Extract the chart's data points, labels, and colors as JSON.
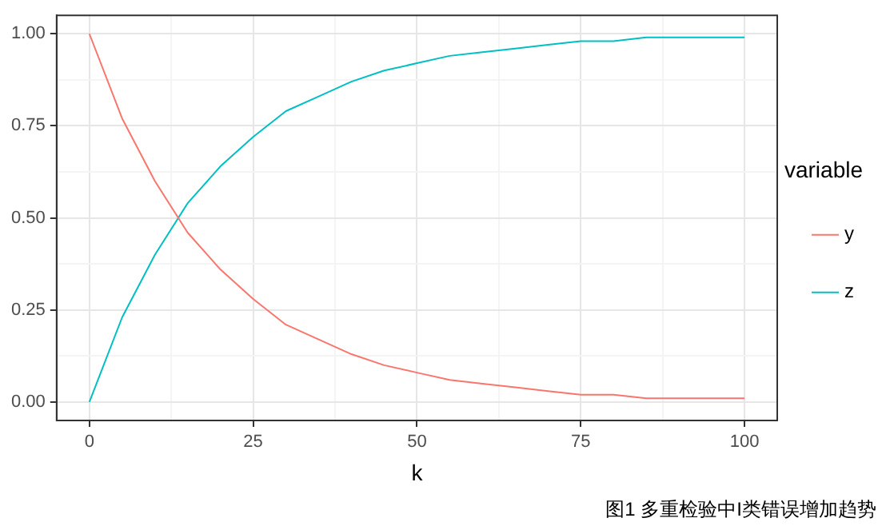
{
  "chart_data": {
    "type": "line",
    "xlabel": "k",
    "legend_title": "variable",
    "legend": "right",
    "grid": true,
    "marker": "none",
    "line_style": "solid",
    "x": [
      0,
      5,
      10,
      15,
      20,
      25,
      30,
      35,
      40,
      45,
      50,
      55,
      60,
      65,
      70,
      75,
      80,
      85,
      90,
      95,
      100
    ],
    "series": [
      {
        "name": "y",
        "color": "#f8766d",
        "values": [
          1,
          0.77,
          0.6,
          0.46,
          0.36,
          0.28,
          0.21,
          0.17,
          0.13,
          0.1,
          0.08,
          0.06,
          0.05,
          0.04,
          0.03,
          0.02,
          0.02,
          0.01,
          0.01,
          0.01,
          0.01
        ]
      },
      {
        "name": "z",
        "color": "#00bfc4",
        "values": [
          0,
          0.23,
          0.4,
          0.54,
          0.64,
          0.72,
          0.79,
          0.83,
          0.87,
          0.9,
          0.92,
          0.94,
          0.95,
          0.96,
          0.97,
          0.98,
          0.98,
          0.99,
          0.99,
          0.99,
          0.99
        ]
      }
    ],
    "xlim": [
      -5,
      105
    ],
    "xticks": [
      0,
      {
        "value": 12.5,
        "label": null
      },
      25,
      {
        "value": 37.5,
        "label": null
      },
      50,
      {
        "value": 62.5,
        "label": null
      },
      75,
      {
        "value": 87.5,
        "label": null
      },
      100
    ],
    "ylim": [
      -0.05,
      1.05
    ],
    "yticks": [
      {
        "value": 0,
        "label": "0.00"
      },
      {
        "value": 0.125,
        "label": null
      },
      {
        "value": 0.25,
        "label": "0.25"
      },
      {
        "value": 0.375,
        "label": null
      },
      {
        "value": 0.5,
        "label": "0.50"
      },
      {
        "value": 0.625,
        "label": null
      },
      {
        "value": 0.75,
        "label": "0.75"
      },
      {
        "value": 0.875,
        "label": null
      },
      {
        "value": 1,
        "label": "1.00"
      }
    ],
    "annotations": [
      "图1 多重检验中I类错误增加趋势"
    ]
  }
}
